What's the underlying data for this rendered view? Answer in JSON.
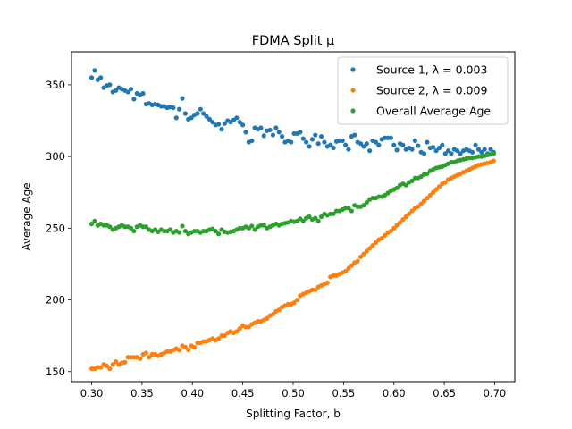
{
  "chart_data": {
    "type": "scatter",
    "title": "FDMA Split μ",
    "xlabel": "Splitting Factor, b",
    "ylabel": "Average Age",
    "xlim": [
      0.28,
      0.72
    ],
    "ylim": [
      143,
      373
    ],
    "xticks": [
      0.3,
      0.35,
      0.4,
      0.45,
      0.5,
      0.55,
      0.6,
      0.65,
      0.7
    ],
    "xtick_labels": [
      "0.30",
      "0.35",
      "0.40",
      "0.45",
      "0.50",
      "0.55",
      "0.60",
      "0.65",
      "0.70"
    ],
    "yticks": [
      150,
      200,
      250,
      300,
      350
    ],
    "ytick_labels": [
      "150",
      "200",
      "250",
      "300",
      "350"
    ],
    "grid": false,
    "legend_position": "top-right",
    "x": [
      0.3,
      0.303,
      0.306,
      0.309,
      0.312,
      0.315,
      0.318,
      0.321,
      0.324,
      0.327,
      0.33,
      0.333,
      0.336,
      0.339,
      0.342,
      0.345,
      0.348,
      0.351,
      0.354,
      0.357,
      0.36,
      0.363,
      0.366,
      0.369,
      0.372,
      0.375,
      0.378,
      0.381,
      0.384,
      0.387,
      0.39,
      0.393,
      0.396,
      0.399,
      0.402,
      0.405,
      0.408,
      0.411,
      0.414,
      0.417,
      0.42,
      0.423,
      0.426,
      0.429,
      0.432,
      0.435,
      0.438,
      0.441,
      0.444,
      0.447,
      0.45,
      0.453,
      0.456,
      0.459,
      0.462,
      0.465,
      0.468,
      0.471,
      0.474,
      0.477,
      0.48,
      0.483,
      0.486,
      0.489,
      0.492,
      0.495,
      0.498,
      0.501,
      0.504,
      0.507,
      0.51,
      0.513,
      0.516,
      0.519,
      0.522,
      0.525,
      0.528,
      0.531,
      0.534,
      0.537,
      0.54,
      0.543,
      0.546,
      0.549,
      0.552,
      0.555,
      0.558,
      0.561,
      0.564,
      0.567,
      0.57,
      0.573,
      0.576,
      0.579,
      0.582,
      0.585,
      0.588,
      0.591,
      0.594,
      0.597,
      0.6,
      0.603,
      0.606,
      0.609,
      0.612,
      0.615,
      0.618,
      0.621,
      0.624,
      0.627,
      0.63,
      0.633,
      0.636,
      0.639,
      0.642,
      0.645,
      0.648,
      0.651,
      0.654,
      0.657,
      0.66,
      0.663,
      0.666,
      0.669,
      0.672,
      0.675,
      0.678,
      0.681,
      0.684,
      0.687,
      0.69,
      0.693,
      0.696,
      0.699
    ],
    "series": [
      {
        "name": "Source 1, λ = 0.003",
        "color": "#1f77b4",
        "values": [
          355.0,
          360.0,
          353.5,
          355.0,
          348.0,
          349.5,
          350.0,
          345.0,
          346.0,
          348.0,
          347.0,
          346.0,
          345.0,
          347.0,
          340.0,
          344.0,
          343.0,
          344.0,
          336.5,
          337.0,
          336.0,
          336.5,
          336.0,
          335.0,
          335.0,
          334.0,
          334.5,
          334.0,
          327.0,
          333.0,
          340.5,
          330.0,
          326.0,
          327.0,
          329.0,
          330.0,
          333.0,
          330.0,
          328.0,
          326.0,
          324.0,
          322.0,
          322.5,
          319.0,
          323.0,
          325.0,
          324.0,
          325.5,
          327.0,
          324.0,
          322.0,
          317.0,
          310.0,
          311.0,
          320.0,
          319.0,
          320.0,
          314.5,
          318.0,
          318.5,
          315.0,
          320.0,
          317.0,
          314.0,
          310.0,
          311.0,
          310.0,
          316.0,
          316.0,
          317.0,
          312.5,
          310.0,
          307.0,
          312.0,
          315.0,
          309.0,
          314.0,
          310.0,
          307.0,
          308.0,
          306.0,
          310.5,
          311.0,
          311.0,
          308.0,
          305.0,
          314.0,
          315.0,
          310.0,
          309.0,
          307.0,
          309.0,
          304.0,
          311.0,
          310.0,
          308.0,
          312.0,
          313.0,
          313.0,
          313.0,
          308.0,
          304.5,
          309.0,
          308.0,
          305.0,
          306.0,
          305.0,
          311.0,
          307.5,
          303.0,
          302.0,
          310.0,
          306.0,
          306.5,
          304.0,
          306.0,
          308.0,
          302.0,
          304.0,
          302.0,
          305.0,
          304.0,
          302.0,
          304.0,
          305.0,
          304.0,
          303.0,
          308.0,
          305.0,
          303.0,
          305.0,
          302.0,
          305.0,
          303.0
        ]
      },
      {
        "name": "Source 2, λ = 0.009",
        "color": "#ff7f0e",
        "values": [
          152.0,
          152.0,
          153.0,
          153.0,
          155.0,
          154.0,
          152.0,
          155.0,
          157.0,
          155.0,
          156.0,
          156.5,
          160.0,
          160.0,
          160.0,
          160.0,
          159.0,
          162.0,
          163.0,
          160.0,
          162.0,
          162.0,
          161.0,
          162.0,
          163.0,
          164.0,
          164.0,
          165.0,
          166.0,
          165.0,
          168.0,
          167.0,
          165.0,
          168.0,
          167.0,
          170.0,
          170.0,
          171.0,
          171.0,
          172.0,
          173.0,
          172.0,
          173.0,
          175.0,
          175.0,
          177.0,
          178.0,
          177.0,
          178.0,
          180.0,
          182.0,
          181.0,
          181.0,
          183.0,
          184.0,
          185.0,
          185.0,
          186.0,
          187.0,
          189.0,
          190.0,
          192.0,
          193.0,
          195.0,
          196.0,
          197.0,
          197.0,
          198.0,
          200.0,
          203.0,
          204.0,
          205.0,
          206.0,
          207.0,
          207.0,
          209.0,
          210.0,
          211.0,
          212.0,
          216.0,
          217.0,
          217.0,
          218.0,
          219.0,
          220.0,
          222.0,
          224.0,
          226.0,
          227.0,
          230.0,
          232.0,
          234.0,
          236.0,
          238.0,
          240.0,
          242.0,
          243.0,
          245.0,
          247.0,
          248.0,
          250.0,
          252.0,
          254.0,
          256.0,
          258.0,
          260.0,
          262.0,
          264.0,
          265.0,
          267.0,
          269.0,
          271.0,
          273.0,
          275.0,
          277.0,
          279.0,
          281.0,
          282.0,
          284.0,
          285.0,
          286.0,
          287.0,
          288.0,
          289.0,
          290.0,
          291.0,
          292.0,
          293.0,
          294.0,
          294.5,
          295.0,
          295.5,
          296.0,
          297.0
        ]
      },
      {
        "name": "Overall Average Age",
        "color": "#2ca02c",
        "values": [
          253.0,
          255.0,
          252.0,
          253.0,
          252.0,
          252.0,
          251.0,
          249.0,
          250.0,
          251.0,
          252.0,
          251.0,
          251.0,
          250.0,
          248.0,
          251.0,
          252.0,
          251.0,
          251.0,
          249.0,
          248.0,
          249.0,
          247.5,
          249.0,
          248.0,
          248.0,
          249.0,
          247.0,
          248.0,
          247.0,
          251.5,
          248.0,
          246.0,
          247.0,
          248.0,
          248.0,
          247.0,
          248.0,
          248.0,
          249.0,
          249.5,
          248.0,
          246.0,
          249.0,
          247.5,
          247.0,
          247.5,
          248.0,
          249.0,
          250.0,
          250.0,
          251.0,
          250.0,
          251.5,
          249.0,
          251.0,
          252.0,
          252.0,
          250.0,
          251.0,
          252.0,
          253.0,
          252.0,
          253.0,
          253.5,
          254.0,
          255.0,
          254.5,
          255.0,
          256.5,
          255.0,
          257.0,
          258.0,
          256.0,
          257.0,
          255.0,
          258.0,
          260.0,
          259.0,
          260.0,
          260.0,
          262.0,
          262.0,
          263.0,
          264.0,
          264.0,
          262.0,
          266.0,
          265.0,
          265.0,
          266.0,
          268.0,
          270.0,
          271.0,
          271.0,
          272.0,
          272.0,
          273.0,
          274.5,
          276.0,
          277.0,
          278.0,
          280.0,
          281.0,
          280.0,
          282.0,
          283.0,
          285.0,
          285.0,
          286.0,
          287.5,
          288.0,
          290.0,
          291.0,
          292.0,
          292.5,
          293.0,
          294.0,
          295.0,
          296.0,
          296.0,
          297.0,
          297.5,
          298.0,
          298.5,
          299.0,
          299.0,
          299.5,
          300.0,
          300.0,
          300.5,
          301.0,
          301.5,
          302.0
        ]
      }
    ]
  }
}
